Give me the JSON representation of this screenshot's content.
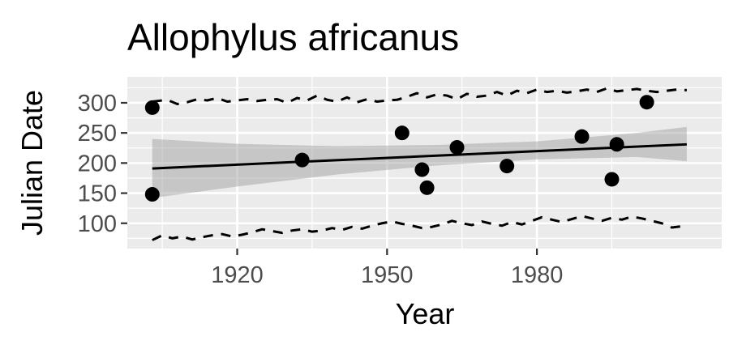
{
  "chart_data": {
    "type": "scatter",
    "title": "Allophylus africanus",
    "xlabel": "Year",
    "ylabel": "Julian Date",
    "xlim": [
      1898,
      2017
    ],
    "ylim": [
      58,
      343
    ],
    "x_ticks": [
      1920,
      1950,
      1980
    ],
    "y_ticks": [
      100,
      150,
      200,
      250,
      300
    ],
    "grid": true,
    "legend": "none",
    "points": [
      {
        "x": 1903,
        "y": 292
      },
      {
        "x": 1903,
        "y": 148
      },
      {
        "x": 1933,
        "y": 205
      },
      {
        "x": 1953,
        "y": 250
      },
      {
        "x": 1957,
        "y": 189
      },
      {
        "x": 1958,
        "y": 159
      },
      {
        "x": 1964,
        "y": 226
      },
      {
        "x": 1974,
        "y": 195
      },
      {
        "x": 1989,
        "y": 244
      },
      {
        "x": 1995,
        "y": 173
      },
      {
        "x": 1996,
        "y": 231
      },
      {
        "x": 2002,
        "y": 301
      }
    ],
    "trend_line": {
      "x": [
        1903,
        2010
      ],
      "y": [
        191,
        231
      ]
    },
    "confidence_band": {
      "x": [
        1903,
        1920,
        1940,
        1960,
        1980,
        2000,
        2010
      ],
      "lower": [
        142,
        161,
        181,
        196,
        206,
        210,
        203
      ],
      "upper": [
        240,
        232,
        228,
        230,
        236,
        250,
        260
      ]
    },
    "upper_dashed": {
      "x": [
        1903,
        1906,
        1908,
        1910,
        1912,
        1914,
        1916,
        1918,
        1920,
        1922,
        1924,
        1926,
        1928,
        1930,
        1932,
        1934,
        1936,
        1938,
        1940,
        1942,
        1944,
        1946,
        1948,
        1950,
        1952,
        1954,
        1956,
        1958,
        1960,
        1962,
        1964,
        1966,
        1968,
        1970,
        1972,
        1974,
        1976,
        1978,
        1980,
        1982,
        1984,
        1986,
        1988,
        1990,
        1992,
        1994,
        1996,
        1998,
        2000,
        2002,
        2004,
        2006,
        2008,
        2010
      ],
      "y": [
        302,
        305,
        298,
        301,
        306,
        304,
        308,
        302,
        304,
        306,
        303,
        305,
        306,
        300,
        308,
        304,
        312,
        305,
        302,
        309,
        301,
        306,
        302,
        304,
        305,
        310,
        316,
        309,
        314,
        312,
        306,
        315,
        310,
        312,
        318,
        312,
        320,
        316,
        322,
        318,
        320,
        317,
        319,
        322,
        318,
        324,
        319,
        321,
        323,
        320,
        318,
        320,
        322,
        321
      ]
    },
    "lower_dashed": {
      "x": [
        1903,
        1905,
        1907,
        1909,
        1911,
        1913,
        1915,
        1917,
        1919,
        1921,
        1923,
        1925,
        1927,
        1929,
        1931,
        1933,
        1935,
        1937,
        1939,
        1941,
        1943,
        1945,
        1947,
        1949,
        1951,
        1953,
        1955,
        1957,
        1959,
        1961,
        1963,
        1965,
        1967,
        1969,
        1971,
        1973,
        1975,
        1977,
        1979,
        1981,
        1983,
        1985,
        1987,
        1989,
        1991,
        1993,
        1995,
        1997,
        1999,
        2001,
        2003,
        2005,
        2007,
        2009,
        2010
      ],
      "y": [
        72,
        80,
        75,
        78,
        73,
        77,
        80,
        82,
        78,
        81,
        85,
        90,
        87,
        84,
        88,
        90,
        86,
        88,
        92,
        89,
        94,
        91,
        96,
        100,
        103,
        99,
        96,
        92,
        94,
        98,
        104,
        100,
        97,
        103,
        99,
        96,
        102,
        98,
        104,
        110,
        106,
        102,
        107,
        112,
        108,
        104,
        109,
        106,
        111,
        108,
        104,
        100,
        93,
        95,
        98
      ]
    }
  }
}
